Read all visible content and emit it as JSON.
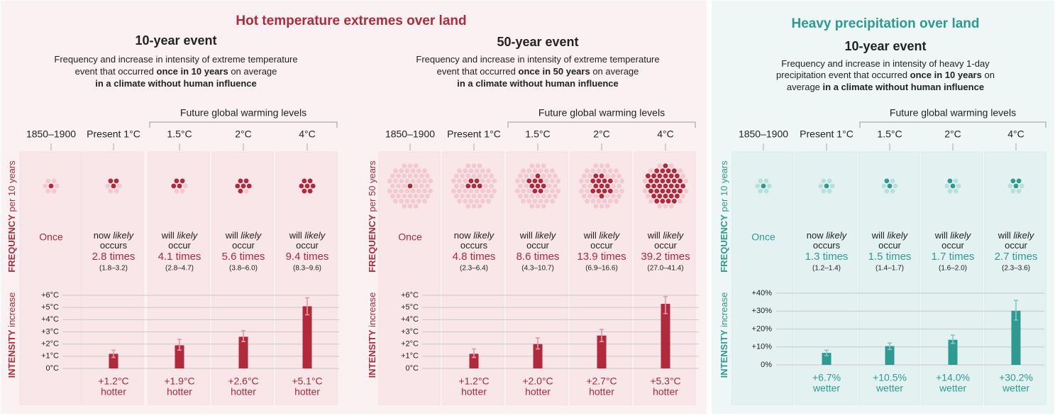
{
  "chart_data": [
    {
      "type": "bar",
      "group_title": "Hot temperature extremes over land",
      "title": "10-year event",
      "subtitle": [
        [
          {
            "text": "Frequency and increase in intensity of extreme temperature"
          }
        ],
        [
          {
            "text": "event that occurred"
          },
          {
            "text": "once in 10 years",
            "bold": true
          },
          {
            "text": "on average"
          }
        ],
        [
          {
            "text": "in a climate without human influence",
            "bold": true
          }
        ]
      ],
      "bracket_label": "Future global warming levels",
      "categories": [
        "1850–1900",
        "Present 1°C",
        "1.5°C",
        "2°C",
        "4°C"
      ],
      "frequency_label": [
        {
          "text": "FREQUENCY",
          "bold": true
        },
        {
          "text": "per 10 years"
        }
      ],
      "frequency": {
        "values": [
          1,
          2.8,
          4.1,
          5.6,
          9.4
        ],
        "value_labels": [
          "Once",
          "2.8 times",
          "4.1 times",
          "5.6 times",
          "9.4 times"
        ],
        "statements": [
          null,
          [
            [
              {
                "text": "now"
              },
              {
                "text": "likely",
                "italic": true
              }
            ],
            [
              {
                "text": "occurs"
              }
            ]
          ],
          [
            [
              {
                "text": "will"
              },
              {
                "text": "likely",
                "italic": true
              }
            ],
            [
              {
                "text": "occur"
              }
            ]
          ],
          [
            [
              {
                "text": "will"
              },
              {
                "text": "likely",
                "italic": true
              }
            ],
            [
              {
                "text": "occur"
              }
            ]
          ],
          [
            [
              {
                "text": "will"
              },
              {
                "text": "likely",
                "italic": true
              }
            ],
            [
              {
                "text": "occur"
              }
            ]
          ]
        ],
        "ranges": [
          null,
          "(1.8–3.2)",
          "(2.8–4.7)",
          "(3.8–6.0)",
          "(8.3–9.6)"
        ]
      },
      "intensity_label": [
        {
          "text": "INTENSITY",
          "bold": true
        },
        {
          "text": "increase"
        }
      ],
      "values": [
        null,
        1.2,
        1.9,
        2.6,
        5.1
      ],
      "value_labels": [
        null,
        "+1.2°C",
        "+1.9°C",
        "+2.6°C",
        "+5.1°C"
      ],
      "errors": [
        null,
        [
          0.9,
          1.5
        ],
        [
          1.5,
          2.4
        ],
        [
          2.2,
          3.1
        ],
        [
          4.4,
          5.8
        ]
      ],
      "notes": [
        null,
        "hotter",
        "hotter",
        "hotter",
        "hotter"
      ],
      "ylim": [
        0,
        6
      ],
      "yticks": [
        {
          "value": 0,
          "label": "0°C"
        },
        {
          "value": 1,
          "label": "+1°C"
        },
        {
          "value": 2,
          "label": "+2°C"
        },
        {
          "value": 3,
          "label": "+3°C"
        },
        {
          "value": 4,
          "label": "+4°C"
        },
        {
          "value": 5,
          "label": "+5°C"
        },
        {
          "value": 6,
          "label": "+6°C"
        }
      ],
      "grid": true,
      "color": "#b02a3c",
      "light_color": "#f3c9d0",
      "error_color": "#e69aa5"
    },
    {
      "type": "bar",
      "title": "50-year event",
      "subtitle": [
        [
          {
            "text": "Frequency and increase in intensity of extreme temperature"
          }
        ],
        [
          {
            "text": "event that occurred"
          },
          {
            "text": "once in 50 years",
            "bold": true
          },
          {
            "text": "on average"
          }
        ],
        [
          {
            "text": "in a climate without human influence",
            "bold": true
          }
        ]
      ],
      "bracket_label": "Future global warming levels",
      "categories": [
        "1850–1900",
        "Present 1°C",
        "1.5°C",
        "2°C",
        "4°C"
      ],
      "frequency_label": [
        {
          "text": "FREQUENCY",
          "bold": true
        },
        {
          "text": "per 50 years"
        }
      ],
      "frequency": {
        "values": [
          1,
          4.8,
          8.6,
          13.9,
          39.2
        ],
        "value_labels": [
          "Once",
          "4.8 times",
          "8.6 times",
          "13.9 times",
          "39.2 times"
        ],
        "statements": [
          null,
          [
            [
              {
                "text": "now"
              },
              {
                "text": "likely",
                "italic": true
              }
            ],
            [
              {
                "text": "occurs"
              }
            ]
          ],
          [
            [
              {
                "text": "will"
              },
              {
                "text": "likely",
                "italic": true
              }
            ],
            [
              {
                "text": "occur"
              }
            ]
          ],
          [
            [
              {
                "text": "will"
              },
              {
                "text": "likely",
                "italic": true
              }
            ],
            [
              {
                "text": "occur"
              }
            ]
          ],
          [
            [
              {
                "text": "will"
              },
              {
                "text": "likely",
                "italic": true
              }
            ],
            [
              {
                "text": "occur"
              }
            ]
          ]
        ],
        "ranges": [
          null,
          "(2.3–6.4)",
          "(4.3–10.7)",
          "(6.9–16.6)",
          "(27.0–41.4)"
        ]
      },
      "intensity_label": [
        {
          "text": "INTENSITY",
          "bold": true
        },
        {
          "text": "increase"
        }
      ],
      "values": [
        null,
        1.2,
        2.0,
        2.7,
        5.3
      ],
      "value_labels": [
        null,
        "+1.2°C",
        "+2.0°C",
        "+2.7°C",
        "+5.3°C"
      ],
      "errors": [
        null,
        [
          0.9,
          1.6
        ],
        [
          1.6,
          2.5
        ],
        [
          2.2,
          3.2
        ],
        [
          4.5,
          5.9
        ]
      ],
      "notes": [
        null,
        "hotter",
        "hotter",
        "hotter",
        "hotter"
      ],
      "ylim": [
        0,
        6
      ],
      "yticks": [
        {
          "value": 0,
          "label": "0°C"
        },
        {
          "value": 1,
          "label": "+1°C"
        },
        {
          "value": 2,
          "label": "+2°C"
        },
        {
          "value": 3,
          "label": "+3°C"
        },
        {
          "value": 4,
          "label": "+4°C"
        },
        {
          "value": 5,
          "label": "+5°C"
        },
        {
          "value": 6,
          "label": "+6°C"
        }
      ],
      "grid": true,
      "color": "#b02a3c",
      "light_color": "#f3c9d0",
      "error_color": "#e69aa5"
    },
    {
      "type": "bar",
      "group_title": "Heavy precipitation over land",
      "title": "10-year event",
      "subtitle": [
        [
          {
            "text": "Frequency and increase in intensity of heavy 1-day"
          }
        ],
        [
          {
            "text": "precipitation event that occurred"
          },
          {
            "text": "once in 10 years",
            "bold": true
          },
          {
            "text": "on"
          }
        ],
        [
          {
            "text": "average"
          },
          {
            "text": "in a climate without human influence",
            "bold": true
          }
        ]
      ],
      "bracket_label": "Future global warming levels",
      "categories": [
        "1850–1900",
        "Present 1°C",
        "1.5°C",
        "2°C",
        "4°C"
      ],
      "frequency_label": [
        {
          "text": "FREQUENCY",
          "bold": true
        },
        {
          "text": "per 10 years"
        }
      ],
      "frequency": {
        "values": [
          1,
          1.3,
          1.5,
          1.7,
          2.7
        ],
        "value_labels": [
          "Once",
          "1.3 times",
          "1.5 times",
          "1.7 times",
          "2.7 times"
        ],
        "statements": [
          null,
          [
            [
              {
                "text": "now"
              },
              {
                "text": "likely",
                "italic": true
              }
            ],
            [
              {
                "text": "occurs"
              }
            ]
          ],
          [
            [
              {
                "text": "will"
              },
              {
                "text": "likely",
                "italic": true
              }
            ],
            [
              {
                "text": "occur"
              }
            ]
          ],
          [
            [
              {
                "text": "will"
              },
              {
                "text": "likely",
                "italic": true
              }
            ],
            [
              {
                "text": "occur"
              }
            ]
          ],
          [
            [
              {
                "text": "will"
              },
              {
                "text": "likely",
                "italic": true
              }
            ],
            [
              {
                "text": "occur"
              }
            ]
          ]
        ],
        "ranges": [
          null,
          "(1.2–1.4)",
          "(1.4–1.7)",
          "(1.6–2.0)",
          "(2.3–3.6)"
        ]
      },
      "intensity_label": [
        {
          "text": "INTENSITY",
          "bold": true
        },
        {
          "text": "increase"
        }
      ],
      "values": [
        null,
        6.7,
        10.5,
        14.0,
        30.2
      ],
      "value_labels": [
        null,
        "+6.7%",
        "+10.5%",
        "+14.0%",
        "+30.2%"
      ],
      "errors": [
        null,
        [
          5.2,
          8.2
        ],
        [
          8.6,
          12.2
        ],
        [
          12.0,
          16.6
        ],
        [
          25.0,
          36.0
        ]
      ],
      "notes": [
        null,
        "wetter",
        "wetter",
        "wetter",
        "wetter"
      ],
      "ylim": [
        0,
        40
      ],
      "yticks": [
        {
          "value": 0,
          "label": "0%"
        },
        {
          "value": 10,
          "label": "+10%"
        },
        {
          "value": 20,
          "label": "+20%"
        },
        {
          "value": 30,
          "label": "+30%"
        },
        {
          "value": 40,
          "label": "+40%"
        }
      ],
      "grid": true,
      "color": "#2e9a92",
      "light_color": "#b7e0dc",
      "error_color": "#86c9c2"
    }
  ]
}
